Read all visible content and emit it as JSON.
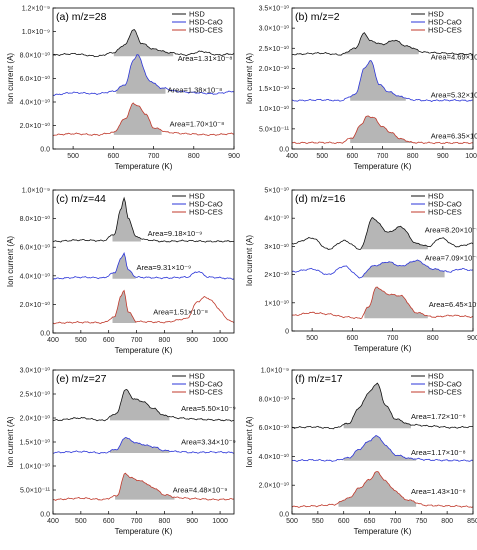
{
  "colors": {
    "HSD": "#111111",
    "HSD-CaO": "#2b35d8",
    "HSD-CES": "#c0392b",
    "fill": "#a9a9a9"
  },
  "chart_data": [
    {
      "type": "line",
      "title": "(a) m/z=28",
      "xlabel": "Temperature (K)",
      "ylabel": "Ion current (A)",
      "xlim": [
        450,
        900
      ],
      "ylim": [
        0,
        1.2e-09
      ],
      "xticks": [
        "500",
        "600",
        "700",
        "800",
        "900"
      ],
      "yticks": [
        "0.0",
        "2.0×10⁻¹⁰",
        "4.0×10⁻¹⁰",
        "6.0×10⁻¹⁰",
        "8.0×10⁻¹⁰",
        "1.0×10⁻⁹",
        "1.2×10⁻⁹"
      ],
      "legend": {
        "position": "top-right",
        "entries": [
          "HSD",
          "HSD-CaO",
          "HSD-CES"
        ]
      },
      "series": [
        {
          "name": "HSD",
          "x": [
            450,
            500,
            560,
            600,
            630,
            650,
            670,
            700,
            740,
            780,
            820,
            860,
            900
          ],
          "y": [
            8e-10,
            8.1e-10,
            7.9e-10,
            8.2e-10,
            8.9e-10,
            1.02e-09,
            9e-10,
            8.5e-10,
            8.2e-10,
            8e-10,
            8.3e-10,
            8e-10,
            8.1e-10
          ],
          "baseline": 7.9e-10,
          "range": [
            600,
            750
          ]
        },
        {
          "name": "HSD-CaO",
          "x": [
            450,
            500,
            560,
            600,
            630,
            650,
            660,
            690,
            720,
            760,
            800,
            850,
            900
          ],
          "y": [
            4.6e-10,
            4.8e-10,
            4.7e-10,
            4.9e-10,
            5.5e-10,
            7.6e-10,
            8e-10,
            5.8e-10,
            5.2e-10,
            4.9e-10,
            4.8e-10,
            4.7e-10,
            4.9e-10
          ],
          "baseline": 4.7e-10,
          "range": [
            605,
            730
          ]
        },
        {
          "name": "HSD-CES",
          "x": [
            450,
            500,
            560,
            600,
            630,
            650,
            660,
            680,
            700,
            740,
            780,
            840,
            900
          ],
          "y": [
            1.2e-10,
            1.3e-10,
            1.2e-10,
            1.4e-10,
            2.6e-10,
            3.9e-10,
            3.7e-10,
            3e-10,
            1.8e-10,
            1.4e-10,
            1.3e-10,
            1.2e-10,
            1.3e-10
          ],
          "baseline": 1.2e-10,
          "range": [
            600,
            720
          ]
        }
      ],
      "annotations": [
        {
          "series": "HSD",
          "text": "Area=1.31×10⁻⁸",
          "x": 760,
          "y": 7.5e-10
        },
        {
          "series": "HSD-CaO",
          "text": "Area=1.38×10⁻⁸",
          "x": 735,
          "y": 4.8e-10
        },
        {
          "series": "HSD-CES",
          "text": "Area=1.70×10⁻⁸",
          "x": 740,
          "y": 1.9e-10
        }
      ]
    },
    {
      "type": "line",
      "title": "(b) m/z=2",
      "xlabel": "Temperature (K)",
      "ylabel": "Ion current (A)",
      "xlim": [
        400,
        1000
      ],
      "ylim": [
        0,
        3.5e-10
      ],
      "xticks": [
        "400",
        "500",
        "600",
        "700",
        "800",
        "900",
        "1000"
      ],
      "yticks": [
        "0.0",
        "5.0×10⁻¹¹",
        "1.0×10⁻¹⁰",
        "1.5×10⁻¹⁰",
        "2.0×10⁻¹⁰",
        "2.5×10⁻¹⁰",
        "3.0×10⁻¹⁰",
        "3.5×10⁻¹⁰"
      ],
      "legend": {
        "position": "top-right",
        "entries": [
          "HSD",
          "HSD-CaO",
          "HSD-CES"
        ]
      },
      "series": [
        {
          "name": "HSD",
          "x": [
            400,
            500,
            560,
            610,
            640,
            660,
            700,
            740,
            780,
            840,
            900,
            950,
            1000
          ],
          "y": [
            2.35e-10,
            2.38e-10,
            2.34e-10,
            2.5e-10,
            2.88e-10,
            2.68e-10,
            2.6e-10,
            2.7e-10,
            2.55e-10,
            2.4e-10,
            2.38e-10,
            2.36e-10,
            2.35e-10
          ],
          "baseline": 2.35e-10,
          "range": [
            560,
            820
          ]
        },
        {
          "name": "HSD-CaO",
          "x": [
            400,
            500,
            560,
            610,
            640,
            660,
            690,
            720,
            760,
            800,
            860,
            920,
            1000
          ],
          "y": [
            1.2e-10,
            1.22e-10,
            1.2e-10,
            1.35e-10,
            2e-10,
            2.2e-10,
            1.6e-10,
            1.42e-10,
            1.3e-10,
            1.22e-10,
            1.2e-10,
            1.21e-10,
            1.2e-10
          ],
          "baseline": 1.2e-10,
          "range": [
            590,
            780
          ]
        },
        {
          "name": "HSD-CES",
          "x": [
            400,
            500,
            560,
            600,
            630,
            650,
            670,
            700,
            730,
            760,
            800,
            880,
            1000
          ],
          "y": [
            1.5e-11,
            1.6e-11,
            1.5e-11,
            2.8e-11,
            6.2e-11,
            8.2e-11,
            7.8e-11,
            5.5e-11,
            4e-11,
            2.5e-11,
            1.6e-11,
            1.5e-11,
            1.5e-11
          ],
          "baseline": 1.5e-11,
          "range": [
            590,
            800
          ]
        }
      ],
      "annotations": [
        {
          "series": "HSD",
          "text": "Area=4.69×10⁻⁹",
          "x": 860,
          "y": 2.22e-10
        },
        {
          "series": "HSD-CaO",
          "text": "Area=5.32×10⁻⁹",
          "x": 860,
          "y": 1.28e-10
        },
        {
          "series": "HSD-CES",
          "text": "Area=6.35×10⁻⁹",
          "x": 860,
          "y": 2.6e-11
        }
      ]
    },
    {
      "type": "line",
      "title": "(c) m/z=44",
      "xlabel": "Temperature (K)",
      "ylabel": "Ion current (A)",
      "xlim": [
        400,
        1050
      ],
      "ylim": [
        0,
        1e-09
      ],
      "xticks": [
        "400",
        "500",
        "600",
        "700",
        "800",
        "900",
        "1000"
      ],
      "yticks": [
        "0.0",
        "2.0×10⁻¹⁰",
        "4.0×10⁻¹⁰",
        "6.0×10⁻¹⁰",
        "8.0×10⁻¹⁰",
        "1.0×10⁻⁹"
      ],
      "legend": {
        "position": "top-right",
        "entries": [
          "HSD",
          "HSD-CaO",
          "HSD-CES"
        ]
      },
      "series": [
        {
          "name": "HSD",
          "x": [
            400,
            500,
            580,
            620,
            645,
            655,
            670,
            700,
            740,
            800,
            880,
            960,
            1050
          ],
          "y": [
            6.4e-10,
            6.5e-10,
            6.45e-10,
            6.9e-10,
            8.7e-10,
            9.5e-10,
            8e-10,
            6.7e-10,
            6.5e-10,
            6.4e-10,
            6.45e-10,
            6.4e-10,
            6.42e-10
          ],
          "baseline": 6.4e-10,
          "range": [
            610,
            720
          ]
        },
        {
          "name": "HSD-CaO",
          "x": [
            400,
            500,
            580,
            620,
            645,
            655,
            670,
            700,
            800,
            880,
            920,
            960,
            1050
          ],
          "y": [
            3.8e-10,
            3.9e-10,
            3.85e-10,
            4.2e-10,
            5.2e-10,
            5.6e-10,
            4.4e-10,
            3.9e-10,
            3.85e-10,
            3.9e-10,
            4.3e-10,
            3.9e-10,
            3.8e-10
          ],
          "baseline": 3.8e-10,
          "range": [
            610,
            700
          ]
        },
        {
          "name": "HSD-CES",
          "x": [
            400,
            500,
            580,
            620,
            645,
            655,
            670,
            700,
            800,
            880,
            920,
            945,
            1050
          ],
          "y": [
            7e-11,
            7.5e-11,
            7.2e-11,
            1.1e-10,
            2.6e-10,
            2.95e-10,
            1.5e-10,
            8e-11,
            7.5e-11,
            1e-10,
            2.2e-10,
            2.5e-10,
            7.5e-11
          ],
          "baseline": 7e-11,
          "range": [
            610,
            700
          ]
        }
      ],
      "annotations": [
        {
          "series": "HSD",
          "text": "Area=9.18×10⁻⁹",
          "x": 740,
          "y": 6.8e-10
        },
        {
          "series": "HSD-CaO",
          "text": "Area=9.31×10⁻⁹",
          "x": 700,
          "y": 4.4e-10
        },
        {
          "series": "HSD-CES",
          "text": "Area=1.51×10⁻⁸",
          "x": 760,
          "y": 1.3e-10
        }
      ]
    },
    {
      "type": "line",
      "title": "(d) m/z=16",
      "xlabel": "Temperature (K)",
      "ylabel": "Ion current (A)",
      "xlim": [
        450,
        900
      ],
      "ylim": [
        0,
        5e-10
      ],
      "xticks": [
        "500",
        "600",
        "700",
        "800",
        "900"
      ],
      "yticks": [
        "0",
        "1×10⁻¹⁰",
        "2×10⁻¹⁰",
        "3×10⁻¹⁰",
        "4×10⁻¹⁰",
        "5×10⁻¹⁰"
      ],
      "legend": {
        "position": "top-right",
        "entries": [
          "HSD",
          "HSD-CaO",
          "HSD-CES"
        ]
      },
      "series": [
        {
          "name": "HSD",
          "x": [
            450,
            500,
            540,
            580,
            620,
            650,
            690,
            720,
            760,
            790,
            820,
            860,
            900
          ],
          "y": [
            3.1e-10,
            3.3e-10,
            2.9e-10,
            3.2e-10,
            2.9e-10,
            4e-10,
            3.5e-10,
            3.7e-10,
            3.1e-10,
            3e-10,
            3.3e-10,
            3e-10,
            3.1e-10
          ],
          "baseline": 2.9e-10,
          "range": [
            620,
            790
          ]
        },
        {
          "name": "HSD-CaO",
          "x": [
            450,
            500,
            540,
            580,
            620,
            650,
            690,
            720,
            760,
            800,
            840,
            870,
            900
          ],
          "y": [
            2.1e-10,
            2.2e-10,
            2e-10,
            2.3e-10,
            1.9e-10,
            2.3e-10,
            2.45e-10,
            2.3e-10,
            2.5e-10,
            2.2e-10,
            2.1e-10,
            2.2e-10,
            2.15e-10
          ],
          "baseline": 1.9e-10,
          "range": [
            620,
            830
          ]
        },
        {
          "name": "HSD-CES",
          "x": [
            450,
            500,
            540,
            580,
            620,
            640,
            660,
            690,
            720,
            760,
            800,
            850,
            900
          ],
          "y": [
            5.5e-11,
            6.5e-11,
            6e-11,
            5e-11,
            4.5e-11,
            8.5e-11,
            1.55e-10,
            1.3e-10,
            1.25e-10,
            6.5e-11,
            5e-11,
            5.5e-11,
            5e-11
          ],
          "baseline": 4.5e-11,
          "range": [
            630,
            790
          ]
        }
      ],
      "annotations": [
        {
          "series": "HSD",
          "text": "Area=8.20×10⁻⁹",
          "x": 780,
          "y": 3.5e-10
        },
        {
          "series": "HSD-CaO",
          "text": "Area=7.09×10⁻⁹",
          "x": 780,
          "y": 2.5e-10
        },
        {
          "series": "HSD-CES",
          "text": "Area=6.45×10⁻⁹",
          "x": 790,
          "y": 8.5e-11
        }
      ]
    },
    {
      "type": "line",
      "title": "(e) m/z=27",
      "xlabel": "Temperature (K)",
      "ylabel": "Ion current (A)",
      "xlim": [
        400,
        1050
      ],
      "ylim": [
        0,
        3e-10
      ],
      "xticks": [
        "400",
        "500",
        "600",
        "700",
        "800",
        "900",
        "1000"
      ],
      "yticks": [
        "0.0",
        "5.0×10⁻¹¹",
        "1.0×10⁻¹⁰",
        "1.5×10⁻¹⁰",
        "2.0×10⁻¹⁰",
        "2.5×10⁻¹⁰",
        "3.0×10⁻¹⁰"
      ],
      "legend": {
        "position": "top-right",
        "entries": [
          "HSD",
          "HSD-CaO",
          "HSD-CES"
        ]
      },
      "series": [
        {
          "name": "HSD",
          "x": [
            400,
            500,
            580,
            630,
            660,
            690,
            720,
            760,
            800,
            850,
            900,
            980,
            1050
          ],
          "y": [
            1.95e-10,
            2e-10,
            1.95e-10,
            2.1e-10,
            2.6e-10,
            2.4e-10,
            2.35e-10,
            2.2e-10,
            2.05e-10,
            2e-10,
            1.98e-10,
            1.96e-10,
            1.95e-10
          ],
          "baseline": 1.95e-10,
          "range": [
            600,
            820
          ]
        },
        {
          "name": "HSD-CaO",
          "x": [
            400,
            500,
            580,
            630,
            660,
            690,
            720,
            760,
            800,
            850,
            900,
            980,
            1050
          ],
          "y": [
            1.28e-10,
            1.3e-10,
            1.27e-10,
            1.35e-10,
            1.6e-10,
            1.5e-10,
            1.45e-10,
            1.4e-10,
            1.32e-10,
            1.3e-10,
            1.28e-10,
            1.29e-10,
            1.28e-10
          ],
          "baseline": 1.27e-10,
          "range": [
            600,
            820
          ]
        },
        {
          "name": "HSD-CES",
          "x": [
            400,
            500,
            580,
            630,
            660,
            680,
            720,
            760,
            800,
            850,
            900,
            980,
            1050
          ],
          "y": [
            3e-11,
            3.3e-11,
            3e-11,
            3.8e-11,
            8.5e-11,
            7.5e-11,
            6.8e-11,
            5.5e-11,
            4e-11,
            3.4e-11,
            3.2e-11,
            3e-11,
            3.1e-11
          ],
          "baseline": 3e-11,
          "range": [
            620,
            840
          ]
        }
      ],
      "annotations": [
        {
          "series": "HSD",
          "text": "Area=5.50×10⁻⁹",
          "x": 860,
          "y": 2.15e-10
        },
        {
          "series": "HSD-CaO",
          "text": "Area=3.34×10⁻⁹",
          "x": 860,
          "y": 1.45e-10
        },
        {
          "series": "HSD-CES",
          "text": "Area=4.48×10⁻⁹",
          "x": 830,
          "y": 4.5e-11
        }
      ]
    },
    {
      "type": "line",
      "title": "(f) m/z=17",
      "xlabel": "Temperature (K)",
      "ylabel": "Ion current (A)",
      "xlim": [
        500,
        850
      ],
      "ylim": [
        0,
        1e-09
      ],
      "xticks": [
        "500",
        "550",
        "600",
        "650",
        "700",
        "750",
        "800",
        "850"
      ],
      "yticks": [
        "0.0",
        "2.0×10⁻¹⁰",
        "4.0×10⁻¹⁰",
        "6.0×10⁻¹⁰",
        "8.0×10⁻¹⁰",
        "1.0×10⁻⁹"
      ],
      "legend": {
        "position": "top-right",
        "entries": [
          "HSD",
          "HSD-CaO",
          "HSD-CES"
        ]
      },
      "series": [
        {
          "name": "HSD",
          "x": [
            500,
            540,
            580,
            610,
            630,
            650,
            665,
            680,
            700,
            730,
            770,
            810,
            850
          ],
          "y": [
            6e-10,
            6.05e-10,
            5.95e-10,
            6.3e-10,
            7.4e-10,
            8.5e-10,
            9.1e-10,
            7.6e-10,
            6.6e-10,
            6.2e-10,
            6.1e-10,
            6e-10,
            6.05e-10
          ],
          "baseline": 5.95e-10,
          "range": [
            600,
            730
          ]
        },
        {
          "name": "HSD-CaO",
          "x": [
            500,
            540,
            580,
            610,
            630,
            650,
            665,
            680,
            700,
            730,
            770,
            810,
            850
          ],
          "y": [
            3.7e-10,
            3.75e-10,
            3.7e-10,
            3.9e-10,
            4.5e-10,
            5.1e-10,
            5.45e-10,
            4.8e-10,
            4.1e-10,
            3.85e-10,
            3.75e-10,
            3.72e-10,
            3.7e-10
          ],
          "baseline": 3.7e-10,
          "range": [
            600,
            740
          ]
        },
        {
          "name": "HSD-CES",
          "x": [
            500,
            540,
            580,
            610,
            630,
            650,
            665,
            680,
            700,
            720,
            760,
            810,
            850
          ],
          "y": [
            5e-11,
            5.5e-11,
            6.5e-11,
            1.1e-10,
            1.8e-10,
            2.4e-10,
            2.95e-10,
            2.3e-10,
            1.6e-10,
            1e-10,
            6e-11,
            5.5e-11,
            5e-11
          ],
          "baseline": 5e-11,
          "range": [
            590,
            740
          ]
        }
      ],
      "annotations": [
        {
          "series": "HSD",
          "text": "Area=1.72×10⁻⁸",
          "x": 730,
          "y": 6.6e-10
        },
        {
          "series": "HSD-CaO",
          "text": "Area=1.17×10⁻⁸",
          "x": 730,
          "y": 4.1e-10
        },
        {
          "series": "HSD-CES",
          "text": "Area=1.43×10⁻⁸",
          "x": 730,
          "y": 1.4e-10
        }
      ]
    }
  ]
}
